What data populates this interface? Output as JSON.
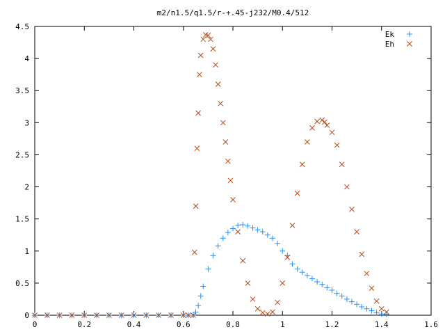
{
  "chart_data": {
    "type": "scatter",
    "title": "m2/n1.5/q1.5/r-+.45-j232/M0.4/512",
    "xlabel": "",
    "ylabel": "",
    "xlim": [
      0,
      1.6
    ],
    "ylim": [
      0,
      4.5
    ],
    "xticks": [
      "0",
      "0.2",
      "0.4",
      "0.6",
      "0.8",
      "1",
      "1.2",
      "1.4",
      "1.6"
    ],
    "yticks": [
      "0",
      "0.5",
      "1",
      "1.5",
      "2",
      "2.5",
      "3",
      "3.5",
      "4",
      "4.5"
    ],
    "legend_position": "top-right",
    "grid": false,
    "series": [
      {
        "name": "Ek",
        "marker": "plus",
        "color": "#1e90ff",
        "x": [
          0,
          0.05,
          0.1,
          0.15,
          0.2,
          0.25,
          0.3,
          0.35,
          0.4,
          0.45,
          0.5,
          0.55,
          0.6,
          0.62,
          0.64,
          0.65,
          0.66,
          0.67,
          0.68,
          0.7,
          0.72,
          0.74,
          0.76,
          0.78,
          0.8,
          0.82,
          0.84,
          0.86,
          0.88,
          0.9,
          0.92,
          0.94,
          0.96,
          0.98,
          1.0,
          1.02,
          1.04,
          1.06,
          1.08,
          1.1,
          1.12,
          1.14,
          1.16,
          1.18,
          1.2,
          1.22,
          1.24,
          1.26,
          1.28,
          1.3,
          1.32,
          1.34,
          1.36,
          1.38,
          1.4,
          1.42
        ],
        "y": [
          0,
          0,
          0,
          0,
          0,
          0,
          0,
          0,
          0,
          0,
          0,
          0,
          0,
          0,
          0,
          0.05,
          0.15,
          0.3,
          0.45,
          0.72,
          0.93,
          1.08,
          1.2,
          1.29,
          1.35,
          1.4,
          1.41,
          1.39,
          1.36,
          1.33,
          1.3,
          1.25,
          1.2,
          1.12,
          1.0,
          0.93,
          0.8,
          0.72,
          0.67,
          0.62,
          0.57,
          0.52,
          0.48,
          0.43,
          0.39,
          0.34,
          0.3,
          0.25,
          0.21,
          0.17,
          0.13,
          0.1,
          0.07,
          0.04,
          0.02,
          0.01
        ]
      },
      {
        "name": "Eh",
        "marker": "cross",
        "color": "#b5470f",
        "x": [
          0,
          0.05,
          0.1,
          0.15,
          0.2,
          0.25,
          0.3,
          0.35,
          0.4,
          0.45,
          0.5,
          0.55,
          0.6,
          0.62,
          0.64,
          0.645,
          0.65,
          0.655,
          0.66,
          0.665,
          0.67,
          0.68,
          0.69,
          0.7,
          0.71,
          0.72,
          0.73,
          0.74,
          0.75,
          0.76,
          0.77,
          0.78,
          0.79,
          0.8,
          0.82,
          0.84,
          0.86,
          0.88,
          0.9,
          0.92,
          0.94,
          0.96,
          0.98,
          1.0,
          1.02,
          1.04,
          1.06,
          1.08,
          1.1,
          1.12,
          1.14,
          1.16,
          1.17,
          1.18,
          1.2,
          1.22,
          1.24,
          1.26,
          1.28,
          1.3,
          1.32,
          1.34,
          1.36,
          1.38,
          1.4,
          1.42
        ],
        "y": [
          0,
          0,
          0,
          0,
          0,
          0,
          0,
          0,
          0,
          0,
          0,
          0,
          0,
          0,
          0,
          0.98,
          1.7,
          2.6,
          3.15,
          3.75,
          4.05,
          4.3,
          4.37,
          4.36,
          4.3,
          4.15,
          3.9,
          3.6,
          3.3,
          3.0,
          2.7,
          2.4,
          2.1,
          1.8,
          1.3,
          0.85,
          0.5,
          0.25,
          0.1,
          0.04,
          0.02,
          0.05,
          0.2,
          0.5,
          0.9,
          1.4,
          1.9,
          2.35,
          2.7,
          2.92,
          3.02,
          3.04,
          3.01,
          2.96,
          2.85,
          2.65,
          2.35,
          2.0,
          1.65,
          1.3,
          0.95,
          0.65,
          0.42,
          0.22,
          0.1,
          0.05
        ]
      }
    ]
  }
}
